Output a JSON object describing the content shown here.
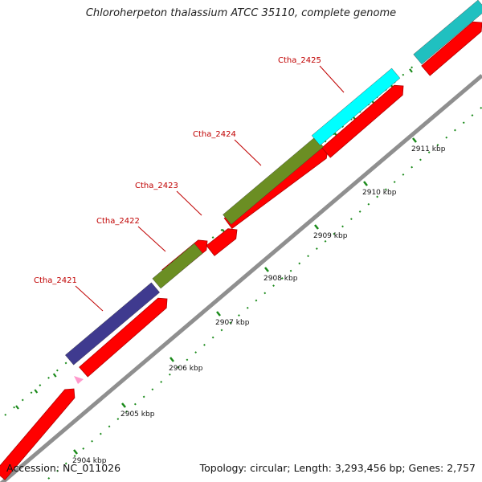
{
  "title": "Chloroherpeton thalassium ATCC 35110, complete genome",
  "footer": {
    "accession": "Accession: NC_011026",
    "summary": "Topology: circular; Length: 3,293,456 bp; Genes: 2,757"
  },
  "colors": {
    "cds": "#ff0000",
    "cds_dark": "#b00000",
    "backbone": "#8f8f8f",
    "tick_green": "#1a8a1a",
    "label_red": "#c00000",
    "pink_marker": "#ff99cc"
  },
  "ticks": [
    {
      "label": "2904 kbp"
    },
    {
      "label": "2905 kbp"
    },
    {
      "label": "2906 kbp"
    },
    {
      "label": "2907 kbp"
    },
    {
      "label": "2908 kbp"
    },
    {
      "label": "2909 kbp"
    },
    {
      "label": "2910 kbp"
    },
    {
      "label": "2911 kbp"
    }
  ],
  "genes": [
    {
      "name": "Ctha_2421",
      "color": "#3f3a8f"
    },
    {
      "name": "Ctha_2422",
      "color": "#6b8e23"
    },
    {
      "name": "Ctha_2423",
      "color": "#ff0000"
    },
    {
      "name": "Ctha_2424",
      "color": "#6b8e23"
    },
    {
      "name": "Ctha_2425",
      "color": "#00ffff"
    },
    {
      "name": "",
      "color": "#20c0c0"
    }
  ]
}
